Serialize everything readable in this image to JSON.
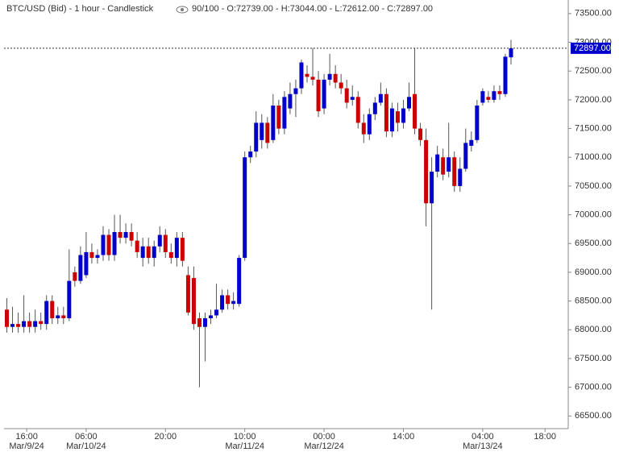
{
  "chart_data": {
    "type": "candlestick",
    "title": "BTC/USD (Bid) - 1 hour - Candlestick",
    "info": "90/100 - O:72739.00 - H:73044.00 - L:72612.00 - C:72897.00",
    "up_color": "#0000cc",
    "down_color": "#cc0000",
    "open": [
      68350,
      68050,
      68100,
      68050,
      68150,
      68050,
      68150,
      68100,
      68500,
      68200,
      68250,
      68200,
      69000,
      68850,
      68950,
      69350,
      69250,
      69300,
      69650,
      69300,
      69700,
      69600,
      69700,
      69550,
      69250,
      69450,
      69250,
      69450,
      69650,
      69350,
      69250,
      69600,
      68950,
      68900,
      68200,
      68050,
      68200,
      68250,
      68350,
      68600,
      68450,
      68450,
      69250,
      71000,
      71100,
      71300,
      71600,
      71300,
      71900,
      71500,
      71850,
      72100,
      72200,
      72450,
      72400,
      72350,
      71850,
      72350,
      72450,
      72300,
      72200,
      72000,
      72050,
      71600,
      71400,
      71750,
      71950,
      72100,
      71450,
      71800,
      71600,
      71850,
      72100,
      71500,
      71300,
      70200,
      70750,
      71000,
      70750,
      71000,
      70500,
      70800,
      71200,
      71300,
      71950,
      72050,
      72000,
      72150,
      72100,
      72739
    ],
    "high": [
      68550,
      68400,
      68300,
      68600,
      68300,
      68350,
      68300,
      68600,
      68600,
      68400,
      68400,
      69400,
      69100,
      69450,
      69700,
      69500,
      69400,
      69800,
      69750,
      70000,
      70000,
      69850,
      69850,
      69700,
      69600,
      69600,
      69550,
      69800,
      69750,
      69500,
      69700,
      69700,
      69100,
      69100,
      68300,
      68300,
      68350,
      68800,
      68700,
      68700,
      68650,
      69300,
      71100,
      71200,
      71800,
      71750,
      71700,
      72100,
      72000,
      72150,
      72300,
      72350,
      72700,
      72600,
      72900,
      72500,
      72450,
      72800,
      72600,
      72450,
      72350,
      72250,
      72150,
      71750,
      71850,
      72050,
      72300,
      72200,
      71950,
      71950,
      72000,
      72300,
      72900,
      71600,
      71500,
      71000,
      71200,
      71150,
      71600,
      71100,
      71000,
      71500,
      71450,
      72000,
      72200,
      72150,
      72250,
      72250,
      72800,
      73044
    ],
    "low": [
      67950,
      67950,
      67950,
      67950,
      67950,
      67950,
      68000,
      68000,
      68100,
      68100,
      68100,
      68150,
      68750,
      68800,
      68900,
      69150,
      69150,
      69200,
      69200,
      69200,
      69500,
      69500,
      69450,
      69250,
      69100,
      69150,
      69100,
      69350,
      69250,
      69150,
      69100,
      69100,
      68250,
      68000,
      67000,
      67450,
      68100,
      68200,
      68300,
      68350,
      68350,
      68400,
      69200,
      70900,
      71000,
      71150,
      71150,
      71250,
      71400,
      71400,
      71750,
      71700,
      72100,
      72300,
      72250,
      71700,
      71750,
      72250,
      72200,
      72100,
      71850,
      71900,
      71500,
      71250,
      71300,
      71650,
      71900,
      71350,
      71350,
      71450,
      71500,
      71800,
      71400,
      71200,
      69800,
      68350,
      70650,
      70600,
      70650,
      70400,
      70400,
      70750,
      71100,
      71250,
      71900,
      71950,
      71950,
      72000,
      72050,
      72612
    ],
    "close": [
      68050,
      68100,
      68050,
      68150,
      68050,
      68150,
      68100,
      68500,
      68200,
      68250,
      68200,
      68850,
      68850,
      69300,
      69350,
      69250,
      69300,
      69650,
      69300,
      69700,
      69600,
      69700,
      69550,
      69350,
      69450,
      69250,
      69450,
      69650,
      69350,
      69250,
      69600,
      69200,
      68300,
      68100,
      68050,
      68200,
      68250,
      68350,
      68600,
      68450,
      68500,
      69250,
      71000,
      71100,
      71600,
      71600,
      71250,
      71900,
      71500,
      72050,
      72100,
      72200,
      72650,
      72400,
      72350,
      71800,
      72350,
      72450,
      72300,
      72200,
      71950,
      72050,
      71600,
      71400,
      71750,
      71950,
      72100,
      71450,
      71850,
      71600,
      71850,
      72050,
      71500,
      71300,
      70200,
      70750,
      71050,
      70700,
      71000,
      70500,
      70800,
      71250,
      71300,
      71900,
      72150,
      72000,
      72150,
      72100,
      72750,
      72897
    ],
    "current_price": {
      "value": 72897,
      "label": "72897.00"
    },
    "xlim": [
      -0.5,
      99.1
    ],
    "xticks": [
      {
        "value": 3.5,
        "label": "16:00",
        "date": "Mar/9/24"
      },
      {
        "value": 14,
        "label": "06:00",
        "date": "Mar/10/24"
      },
      {
        "value": 28,
        "label": "20:00"
      },
      {
        "value": 42,
        "label": "10:00",
        "date": "Mar/11/24"
      },
      {
        "value": 56,
        "label": "00:00",
        "date": "Mar/12/24"
      },
      {
        "value": 70,
        "label": "14:00"
      },
      {
        "value": 84,
        "label": "04:00",
        "date": "Mar/13/24"
      },
      {
        "value": 95,
        "label": "18:00"
      }
    ],
    "ylim": [
      66280,
      73680
    ],
    "yticks": [
      {
        "value": 66500,
        "label": "66500.00"
      },
      {
        "value": 67000,
        "label": "67000.00"
      },
      {
        "value": 67500,
        "label": "67500.00"
      },
      {
        "value": 68000,
        "label": "68000.00"
      },
      {
        "value": 68500,
        "label": "68500.00"
      },
      {
        "value": 69000,
        "label": "69000.00"
      },
      {
        "value": 69500,
        "label": "69500.00"
      },
      {
        "value": 70000,
        "label": "70000.00"
      },
      {
        "value": 70500,
        "label": "70500.00"
      },
      {
        "value": 71000,
        "label": "71000.00"
      },
      {
        "value": 71500,
        "label": "71500.00"
      },
      {
        "value": 72000,
        "label": "72000.00"
      },
      {
        "value": 72500,
        "label": "72500.00"
      },
      {
        "value": 73000,
        "label": "73000.00"
      },
      {
        "value": 73500,
        "label": "73500.00"
      }
    ]
  }
}
